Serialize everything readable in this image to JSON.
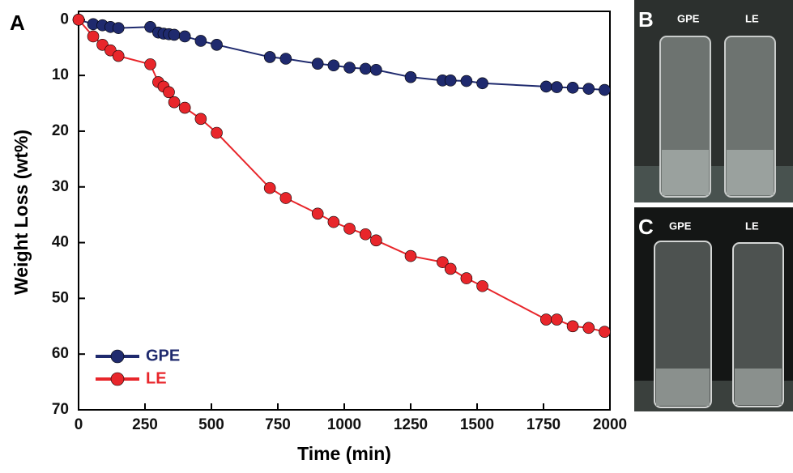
{
  "panel_label": "A",
  "chart_data": {
    "type": "line",
    "xlabel": "Time (min)",
    "ylabel": "Weight Loss (wt%)",
    "x": [
      0,
      55,
      90,
      120,
      150,
      270,
      300,
      320,
      340,
      360,
      400,
      460,
      520,
      720,
      780,
      900,
      960,
      1020,
      1080,
      1120,
      1250,
      1370,
      1400,
      1460,
      1520,
      1760,
      1800,
      1860,
      1920,
      1980
    ],
    "series": [
      {
        "name": "GPE",
        "color": "#1f2a6e",
        "values": [
          0,
          0.8,
          1,
          1.3,
          1.5,
          1.3,
          2.3,
          2.5,
          2.6,
          2.7,
          3,
          3.8,
          4.5,
          6.7,
          7,
          7.9,
          8.2,
          8.6,
          8.8,
          9,
          10.3,
          10.9,
          10.9,
          11,
          11.4,
          12,
          12.1,
          12.2,
          12.4,
          12.6
        ]
      },
      {
        "name": "LE",
        "color": "#e8262b",
        "values": [
          0,
          3,
          4.5,
          5.5,
          6.5,
          8,
          11.2,
          12,
          13,
          14.8,
          15.8,
          17.8,
          20.3,
          30.2,
          32,
          34.8,
          36.3,
          37.5,
          38.5,
          39.6,
          42.4,
          43.5,
          44.7,
          46.4,
          47.8,
          53.8,
          53.8,
          55,
          55.3,
          56
        ]
      }
    ],
    "xlim": [
      0,
      2000
    ],
    "xticks": [
      0,
      250,
      500,
      750,
      1000,
      1250,
      1500,
      1750,
      2000
    ],
    "ylim": [
      -1.5,
      70
    ],
    "yticks": [
      0,
      10,
      20,
      30,
      40,
      50,
      60,
      70
    ],
    "y_inverted": true,
    "legend": "lower left"
  },
  "photos": [
    {
      "label": "B",
      "left": "GPE",
      "right": "LE"
    },
    {
      "label": "C",
      "left": "GPE",
      "right": "LE"
    }
  ]
}
